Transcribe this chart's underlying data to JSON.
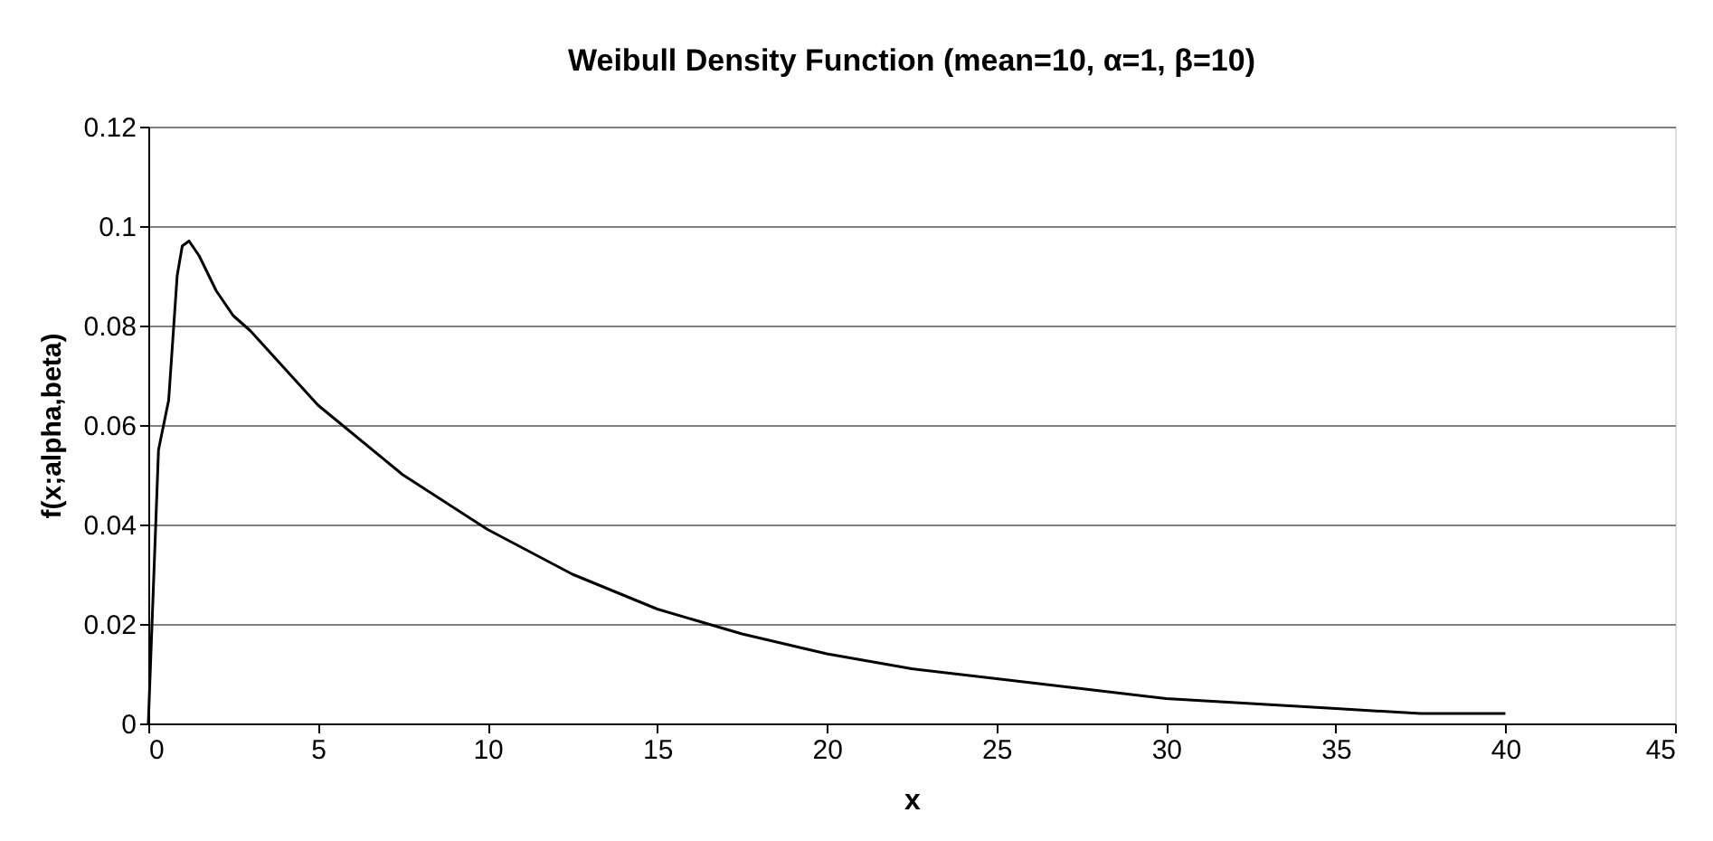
{
  "chart_data": {
    "type": "line",
    "title": "Weibull Density Function (mean=10, α=1, β=10)",
    "xlabel": "x",
    "ylabel": "f(x;alpha,beta)",
    "xlim": [
      0,
      45
    ],
    "xticks": [
      0,
      5,
      10,
      15,
      20,
      25,
      30,
      35,
      40,
      45
    ],
    "ylim": [
      0,
      0.12
    ],
    "yticks": [
      0,
      0.02,
      0.04,
      0.06,
      0.08,
      0.1,
      0.12
    ],
    "grid": "y",
    "marker": "none",
    "line_style": "solid",
    "series": [
      {
        "color": "#000000",
        "x": [
          0,
          0.3,
          0.6,
          0.85,
          1,
          1.2,
          1.5,
          2,
          2.5,
          3,
          5,
          7.5,
          10,
          12.5,
          15,
          17.5,
          20,
          22.5,
          25,
          27.5,
          30,
          32.5,
          35,
          37.5,
          40
        ],
        "values": [
          0,
          0.055,
          0.065,
          0.09,
          0.096,
          0.097,
          0.094,
          0.087,
          0.082,
          0.079,
          0.064,
          0.05,
          0.039,
          0.03,
          0.023,
          0.018,
          0.014,
          0.011,
          0.009,
          0.007,
          0.005,
          0.004,
          0.003,
          0.002,
          0.002
        ]
      }
    ]
  }
}
